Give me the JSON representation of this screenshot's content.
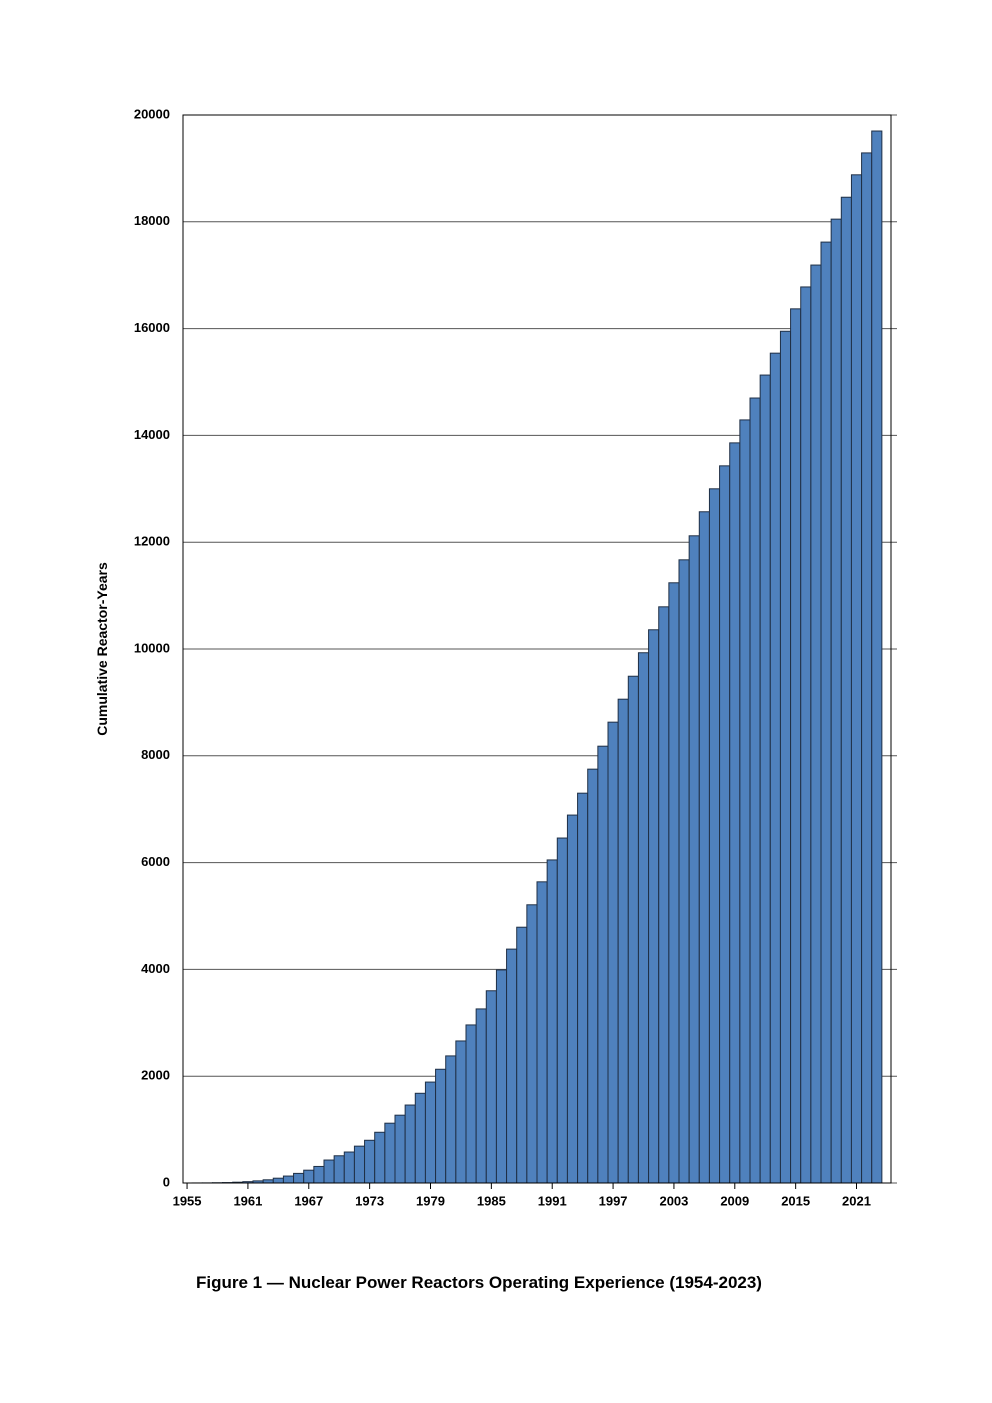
{
  "chart_data": {
    "type": "bar",
    "caption": "Figure 1 — Nuclear Power Reactors Operating Experience (1954-2023)",
    "y_label": "Cumulative Reactor-Years",
    "x": [
      1954,
      1955,
      1956,
      1957,
      1958,
      1959,
      1960,
      1961,
      1962,
      1963,
      1964,
      1965,
      1966,
      1967,
      1968,
      1969,
      1970,
      1971,
      1972,
      1973,
      1974,
      1975,
      1976,
      1977,
      1978,
      1979,
      1980,
      1981,
      1982,
      1983,
      1984,
      1985,
      1986,
      1987,
      1988,
      1989,
      1990,
      1991,
      1992,
      1993,
      1994,
      1995,
      1996,
      1997,
      1998,
      1999,
      2000,
      2001,
      2002,
      2003,
      2004,
      2005,
      2006,
      2007,
      2008,
      2009,
      2010,
      2011,
      2012,
      2013,
      2014,
      2015,
      2016,
      2017,
      2018,
      2019,
      2020,
      2021,
      2022,
      2023
    ],
    "values": [
      0,
      0,
      1,
      2,
      5,
      8,
      15,
      25,
      40,
      60,
      90,
      130,
      180,
      240,
      310,
      430,
      510,
      580,
      690,
      800,
      950,
      1120,
      1270,
      1460,
      1680,
      1890,
      2130,
      2380,
      2660,
      2960,
      3260,
      3600,
      3990,
      4380,
      4790,
      5210,
      5640,
      6050,
      6460,
      6890,
      7300,
      7750,
      8180,
      8630,
      9060,
      9490,
      9930,
      10360,
      10790,
      11240,
      11670,
      12120,
      12570,
      13000,
      13430,
      13860,
      14290,
      14700,
      15130,
      15540,
      15950,
      16370,
      16780,
      17190,
      17620,
      18050,
      18460,
      18880,
      19290,
      19700
    ],
    "color": "#4f81bd",
    "edge_color": "#1f2f45",
    "xlim": [
      1954.6,
      2024.4
    ],
    "xticks": [
      1955,
      1961,
      1967,
      1973,
      1979,
      1985,
      1991,
      1997,
      2003,
      2009,
      2015,
      2021
    ],
    "ylim": [
      0,
      20000
    ],
    "yticks": [
      0,
      2000,
      4000,
      6000,
      8000,
      10000,
      12000,
      14000,
      16000,
      18000,
      20000
    ],
    "grid": true
  }
}
